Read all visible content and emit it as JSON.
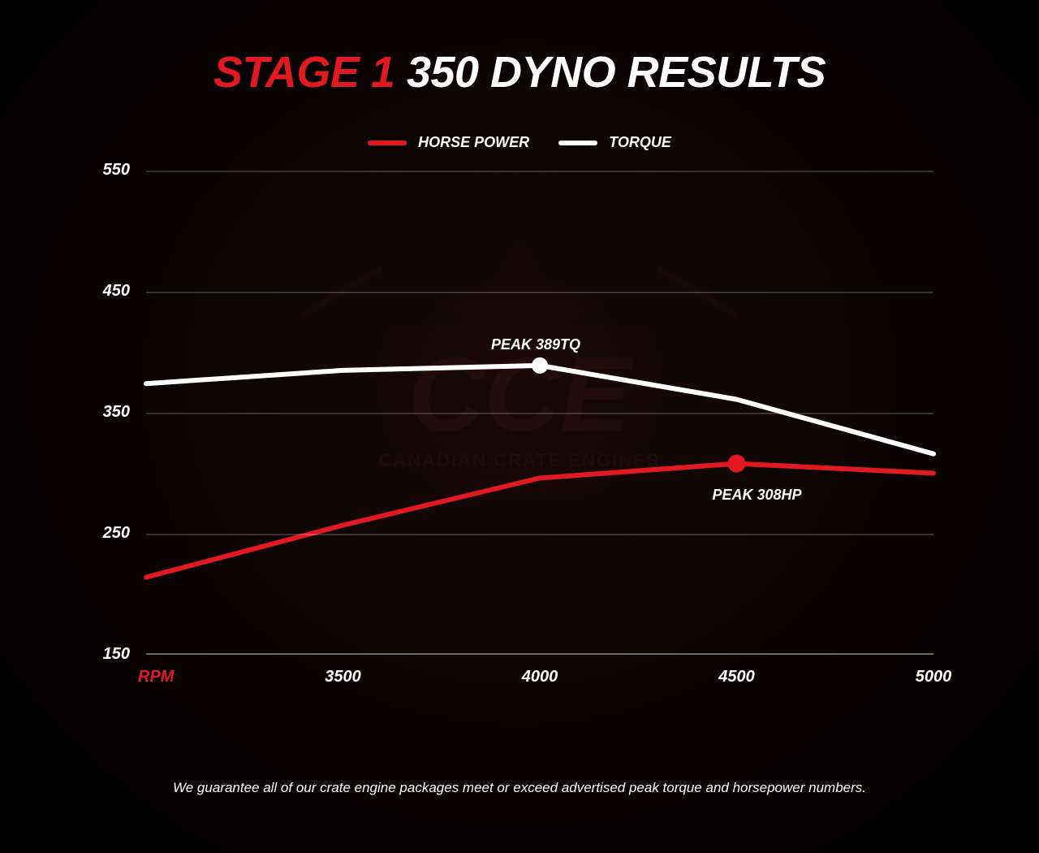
{
  "title": {
    "stage": "STAGE 1",
    "rest": " 350 DYNO RESULTS",
    "fontsize": 54,
    "stage_color": "#e11a22",
    "rest_color": "#ffffff"
  },
  "legend": {
    "items": [
      {
        "label": "HORSE POWER",
        "color": "#e11a22"
      },
      {
        "label": "TORQUE",
        "color": "#ffffff"
      }
    ]
  },
  "chart": {
    "type": "line",
    "background_color": "radial-gradient",
    "grid_color": "rgba(255,255,255,0.18)",
    "ylim": [
      150,
      550
    ],
    "ytick_step": 100,
    "y_ticks": [
      150,
      250,
      350,
      450,
      550
    ],
    "x_axis_label": "RPM",
    "x_axis_label_color": "#e11a22",
    "x_ticks": [
      3500,
      4000,
      4500,
      5000
    ],
    "x_domain": [
      3000,
      5000
    ],
    "line_width": 6,
    "series": [
      {
        "name": "torque",
        "color": "#ffffff",
        "points": [
          {
            "x": 3000,
            "y": 374
          },
          {
            "x": 3500,
            "y": 385
          },
          {
            "x": 4000,
            "y": 389
          },
          {
            "x": 4500,
            "y": 361
          },
          {
            "x": 5000,
            "y": 316
          }
        ],
        "peak": {
          "x": 4000,
          "y": 389,
          "label": "PEAK 389TQ",
          "marker_radius": 10,
          "label_offset_x": -60,
          "label_offset_y": -36
        }
      },
      {
        "name": "horse_power",
        "color": "#e11a22",
        "points": [
          {
            "x": 3000,
            "y": 214
          },
          {
            "x": 3500,
            "y": 257
          },
          {
            "x": 4000,
            "y": 296
          },
          {
            "x": 4500,
            "y": 308
          },
          {
            "x": 5000,
            "y": 300
          }
        ],
        "peak": {
          "x": 4500,
          "y": 308,
          "label": "PEAK 308HP",
          "marker_radius": 11,
          "label_offset_x": -30,
          "label_offset_y": 28
        }
      }
    ]
  },
  "watermark": {
    "text_top": "CCE",
    "text_bottom": "CANADIAN CRATE ENGINES"
  },
  "footnote": "We guarantee all of our crate engine packages meet or exceed advertised peak torque and horsepower numbers."
}
